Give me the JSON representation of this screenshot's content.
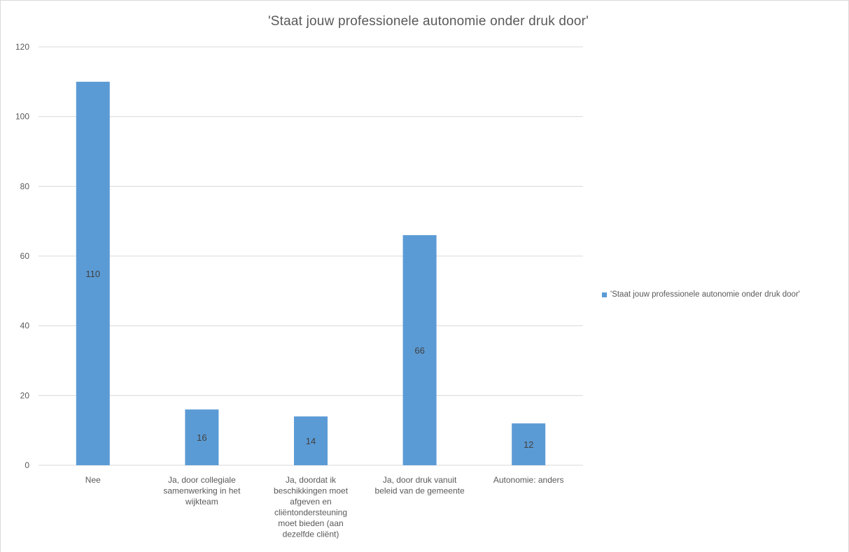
{
  "chart_data": {
    "type": "bar",
    "title": "'Staat jouw professionele autonomie onder druk door'",
    "xlabel": "",
    "ylabel": "",
    "ylim": [
      0,
      120
    ],
    "yticks": [
      0,
      20,
      40,
      60,
      80,
      100,
      120
    ],
    "grid": true,
    "legend_position": "right",
    "categories": [
      [
        "Nee"
      ],
      [
        "Ja, door collegiale",
        "samenwerking in het",
        "wijkteam"
      ],
      [
        "Ja, doordat ik",
        "beschikkingen moet",
        "afgeven en",
        "cliëntondersteuning",
        "moet bieden (aan",
        "dezelfde cliënt)"
      ],
      [
        "Ja, door druk vanuit",
        "beleid van de gemeente"
      ],
      [
        "Autonomie: anders"
      ]
    ],
    "series": [
      {
        "name": "'Staat jouw professionele autonomie onder druk door'",
        "color": "#5b9bd5",
        "values": [
          110,
          16,
          14,
          66,
          12
        ]
      }
    ]
  }
}
